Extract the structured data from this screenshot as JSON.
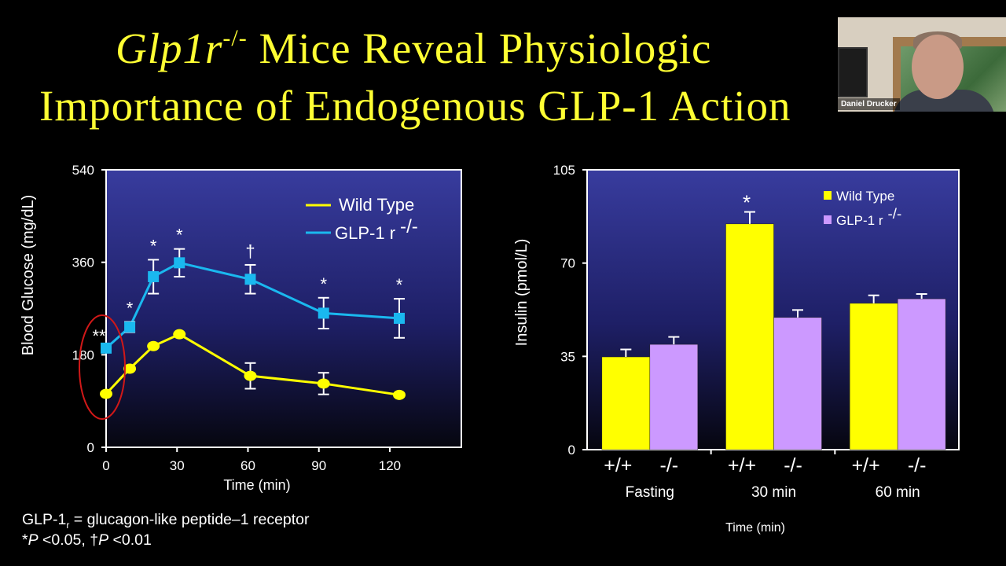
{
  "slide": {
    "title_line1_italic": "Glp1r",
    "title_line1_sup": "-/-",
    "title_line1_rest": " Mice Reveal Physiologic",
    "title_line2": "Importance of Endogenous GLP-1 Action",
    "footnote_line1_a": "GLP-1",
    "footnote_line1_sub": "r",
    "footnote_line1_b": " = glucagon-like peptide–1 receptor",
    "footnote_line2_a": "*",
    "footnote_line2_p1": "P",
    "footnote_line2_b": " <0.05, †",
    "footnote_line2_p2": "P",
    "footnote_line2_c": " <0.01"
  },
  "webcam": {
    "participant_name": "Daniel Drucker"
  },
  "colors": {
    "title": "#ffff33",
    "wild_type": "#ffff00",
    "knockout_line": "#1ab8ef",
    "knockout_bar": "#cc99ff",
    "highlight": "#d01818"
  },
  "chart_data": [
    {
      "type": "line",
      "xlabel": "Time (min)",
      "ylabel": "Blood Glucose (mg/dL)",
      "xlim": [
        0,
        150
      ],
      "ylim": [
        0,
        540
      ],
      "xticks": [
        0,
        30,
        60,
        90,
        120
      ],
      "yticks": [
        0,
        180,
        360,
        540
      ],
      "legend_placement": "top-right",
      "series": [
        {
          "name": "Wild Type",
          "name_sup": "",
          "color": "#ffff00",
          "marker": "circle",
          "x": [
            0,
            10,
            20,
            31,
            61,
            92,
            124
          ],
          "y": [
            104,
            153,
            197,
            220,
            139,
            124,
            102
          ],
          "error": [
            0,
            0,
            0,
            0,
            25,
            21,
            0
          ],
          "annotations": [
            "",
            "",
            "",
            "",
            "",
            "",
            ""
          ]
        },
        {
          "name": "GLP-1 r",
          "name_sup": "-/-",
          "color": "#1ab8ef",
          "marker": "square",
          "x": [
            0,
            10,
            20,
            31,
            61,
            92,
            124
          ],
          "y": [
            193,
            234,
            332,
            359,
            327,
            261,
            251
          ],
          "error": [
            0,
            10,
            33,
            27,
            28,
            30,
            38
          ],
          "annotations": [
            "**",
            "*",
            "*",
            "*",
            "†",
            "*",
            "*"
          ]
        }
      ],
      "highlight": "red ellipse around time 0"
    },
    {
      "type": "bar",
      "xlabel": "Time (min)",
      "ylabel": "Insulin (pmol/L)",
      "ylim": [
        0,
        105
      ],
      "yticks": [
        0,
        35,
        70,
        105
      ],
      "legend_placement": "top-right",
      "categories": [
        "Fasting",
        "30 min",
        "60 min"
      ],
      "bar_labels": [
        "+/+",
        "-/-"
      ],
      "series": [
        {
          "name": "Wild Type",
          "name_sup": "",
          "color": "#ffff00",
          "values": [
            34.8,
            84.7,
            54.9
          ],
          "error": [
            2.8,
            4.5,
            3.0
          ],
          "annotations": [
            "",
            "*",
            ""
          ]
        },
        {
          "name": "GLP-1 r",
          "name_sup": "-/-",
          "color": "#cc99ff",
          "values": [
            39.5,
            49.6,
            56.6
          ],
          "error": [
            2.8,
            2.8,
            1.8
          ],
          "annotations": [
            "",
            "",
            ""
          ]
        }
      ]
    }
  ]
}
